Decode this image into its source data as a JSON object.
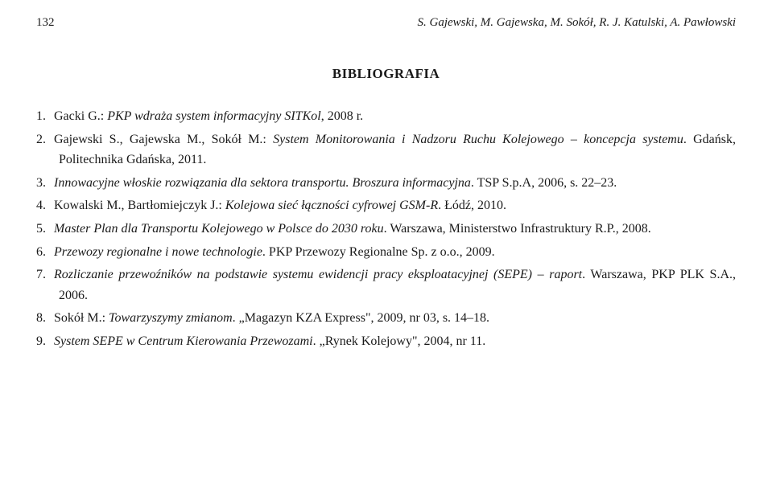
{
  "header": {
    "page_number": "132",
    "authors": "S. Gajewski, M. Gajewska, M. Sokół, R. J. Katulski, A. Pawłowski"
  },
  "section_title": "BIBLIOGRAFIA",
  "bibliography": [
    {
      "num": "1.",
      "text_plain_pre": "Gacki G.: ",
      "text_italic": "PKP wdraża system informacyjny SITKol",
      "text_plain_post": ", 2008 r."
    },
    {
      "num": "2.",
      "text_plain_pre": "Gajewski S., Gajewska M., Sokół M.: ",
      "text_italic": "System Monitorowania i Nadzoru Ruchu Kolejowego – koncepcja systemu",
      "text_plain_post": ". Gdańsk, Politechnika Gdańska, 2011."
    },
    {
      "num": "3.",
      "text_plain_pre": "",
      "text_italic": "Innowacyjne włoskie rozwiązania dla sektora transportu. Broszura informacyjna",
      "text_plain_post": ". TSP S.p.A, 2006, s. 22–23."
    },
    {
      "num": "4.",
      "text_plain_pre": "Kowalski M., Bartłomiejczyk J.: ",
      "text_italic": "Kolejowa sieć łączności cyfrowej GSM-R",
      "text_plain_post": ". Łódź, 2010."
    },
    {
      "num": "5.",
      "text_plain_pre": "",
      "text_italic": "Master Plan dla Transportu Kolejowego w Polsce do 2030 roku",
      "text_plain_post": ". Warszawa, Ministerstwo Infrastruktury R.P., 2008."
    },
    {
      "num": "6.",
      "text_plain_pre": "",
      "text_italic": "Przewozy regionalne i nowe technologie",
      "text_plain_post": ". PKP Przewozy Regionalne Sp. z o.o., 2009."
    },
    {
      "num": "7.",
      "text_plain_pre": "",
      "text_italic": "Rozliczanie przewoźników na podstawie systemu ewidencji pracy eksploatacyjnej (SEPE) – raport",
      "text_plain_post": ". Warszawa, PKP PLK S.A., 2006."
    },
    {
      "num": "8.",
      "text_plain_pre": "Sokół M.: ",
      "text_italic": "Towarzyszymy zmianom",
      "text_plain_post": ". „Magazyn KZA Express\", 2009, nr 03, s. 14–18."
    },
    {
      "num": "9.",
      "text_plain_pre": "",
      "text_italic": "System SEPE w Centrum Kierowania Przewozami",
      "text_plain_post": ". „Rynek Kolejowy\", 2004, nr 11."
    }
  ],
  "style": {
    "background_color": "#ffffff",
    "text_color": "#1a1a1a",
    "body_font_family": "Georgia, 'Times New Roman', serif",
    "header_font_size": 15,
    "section_title_font_size": 17,
    "body_font_size": 16,
    "line_height": 1.6
  }
}
